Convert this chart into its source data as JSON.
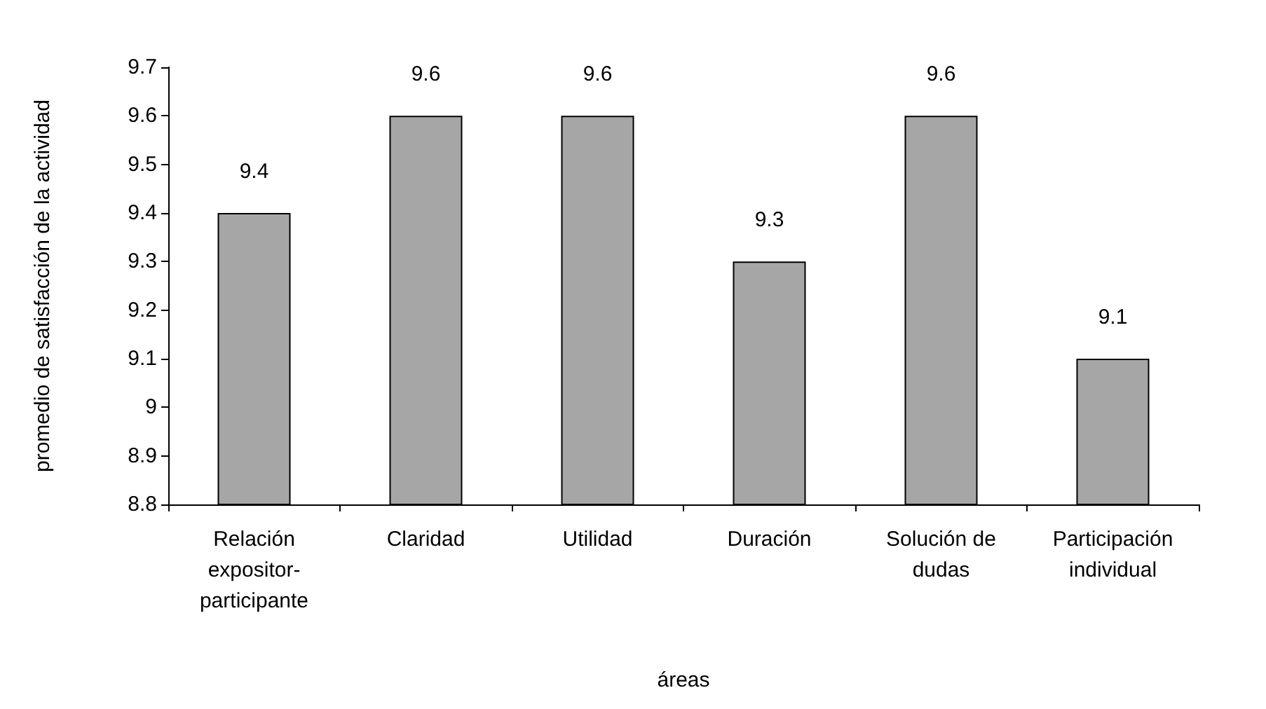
{
  "chart_data": {
    "type": "bar",
    "xlabel": "áreas",
    "ylabel": "promedio de satisfacción de la actividad",
    "categories": [
      "Relación expositor-participante",
      "Claridad",
      "Utilidad",
      "Duración",
      "Solución de dudas",
      "Participación individual"
    ],
    "values": [
      9.4,
      9.6,
      9.6,
      9.3,
      9.6,
      9.1
    ],
    "color": "#a6a6a6",
    "data_labels": true,
    "ylim": [
      8.8,
      9.7
    ],
    "yticks": [
      8.8,
      8.9,
      9,
      9.1,
      9.2,
      9.3,
      9.4,
      9.5,
      9.6,
      9.7
    ],
    "grid": false
  }
}
